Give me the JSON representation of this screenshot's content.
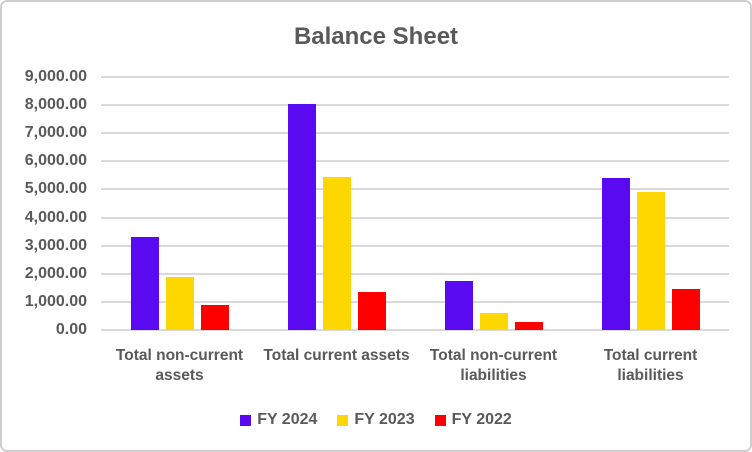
{
  "chart": {
    "title": "Balance Sheet"
  },
  "chart_data": {
    "type": "bar",
    "title": "Balance Sheet",
    "categories": [
      "Total non-current assets",
      "Total current assets",
      "Total non-current liabilities",
      "Total current liabilities"
    ],
    "series": [
      {
        "name": "FY 2024",
        "color": "#5A0AF0",
        "values": [
          3300,
          8050,
          1750,
          5400
        ]
      },
      {
        "name": "FY 2023",
        "color": "#FFD700",
        "values": [
          1900,
          5450,
          600,
          4900
        ]
      },
      {
        "name": "FY 2022",
        "color": "#FF0000",
        "values": [
          880,
          1350,
          280,
          1460
        ]
      }
    ],
    "ylim": [
      0,
      9000
    ],
    "y_tick_step": 1000,
    "y_tick_labels": [
      "0.00",
      "1,000.00",
      "2,000.00",
      "3,000.00",
      "4,000.00",
      "5,000.00",
      "6,000.00",
      "7,000.00",
      "8,000.00",
      "9,000.00"
    ],
    "xlabel": "",
    "ylabel": "",
    "grid": "horizontal",
    "legend_position": "bottom",
    "colors": {
      "text": "#595959",
      "gridline": "#D9D9D9",
      "frame_border": "#D0CECE",
      "background": "#FFFFFF"
    }
  }
}
